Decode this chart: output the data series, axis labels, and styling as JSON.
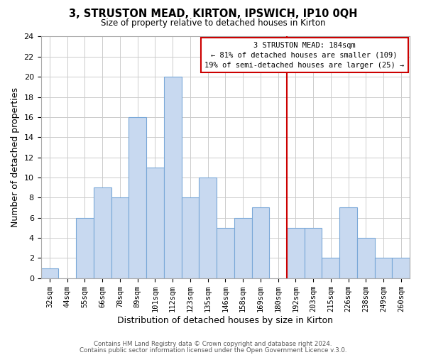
{
  "title": "3, STRUSTON MEAD, KIRTON, IPSWICH, IP10 0QH",
  "subtitle": "Size of property relative to detached houses in Kirton",
  "xlabel": "Distribution of detached houses by size in Kirton",
  "ylabel": "Number of detached properties",
  "bar_labels": [
    "32sqm",
    "44sqm",
    "55sqm",
    "66sqm",
    "78sqm",
    "89sqm",
    "101sqm",
    "112sqm",
    "123sqm",
    "135sqm",
    "146sqm",
    "158sqm",
    "169sqm",
    "180sqm",
    "192sqm",
    "203sqm",
    "215sqm",
    "226sqm",
    "238sqm",
    "249sqm",
    "260sqm"
  ],
  "bar_values": [
    1,
    0,
    6,
    9,
    8,
    16,
    11,
    20,
    8,
    10,
    5,
    6,
    7,
    0,
    5,
    5,
    2,
    7,
    4,
    2,
    2
  ],
  "bar_color": "#c8d9f0",
  "bar_edge_color": "#7aa8d8",
  "vline_x_index": 13.5,
  "vline_color": "#cc0000",
  "annotation_title": "3 STRUSTON MEAD: 184sqm",
  "annotation_line1": "← 81% of detached houses are smaller (109)",
  "annotation_line2": "19% of semi-detached houses are larger (25) →",
  "annotation_box_color": "#ffffff",
  "annotation_box_edge": "#cc0000",
  "ylim": [
    0,
    24
  ],
  "yticks": [
    0,
    2,
    4,
    6,
    8,
    10,
    12,
    14,
    16,
    18,
    20,
    22,
    24
  ],
  "footer1": "Contains HM Land Registry data © Crown copyright and database right 2024.",
  "footer2": "Contains public sector information licensed under the Open Government Licence v.3.0.",
  "background_color": "#ffffff",
  "grid_color": "#cccccc"
}
